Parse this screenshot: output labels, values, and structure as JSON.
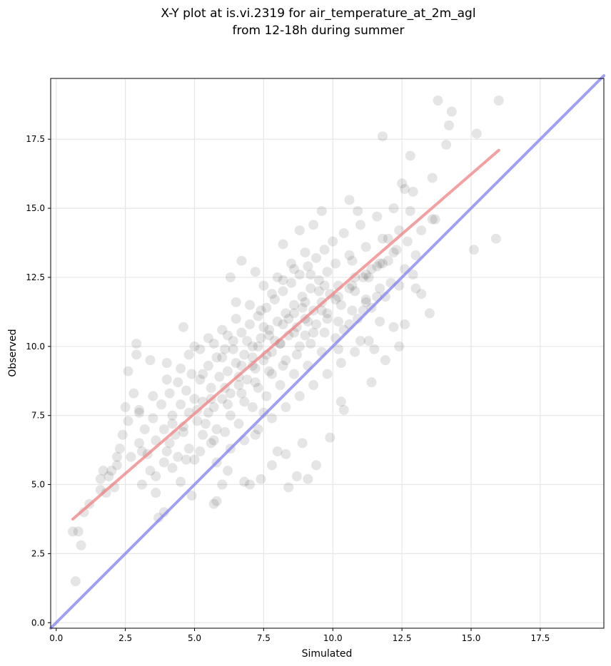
{
  "chart_data": {
    "type": "scatter",
    "title_lines": [
      "X-Y plot at is.vi.2319 for air_temperature_at_2m_agl",
      "from 12-18h during summer"
    ],
    "xlabel": "Simulated",
    "ylabel": "Observed",
    "xlim": [
      -0.2,
      19.8
    ],
    "ylim": [
      -0.2,
      19.7
    ],
    "xticks": [
      0.0,
      2.5,
      5.0,
      7.5,
      10.0,
      12.5,
      15.0,
      17.5
    ],
    "yticks": [
      0.0,
      2.5,
      5.0,
      7.5,
      10.0,
      12.5,
      15.0,
      17.5
    ],
    "xtick_labels": [
      "0.0",
      "2.5",
      "5.0",
      "7.5",
      "10.0",
      "12.5",
      "15.0",
      "17.5"
    ],
    "ytick_labels": [
      "0.0",
      "2.5",
      "5.0",
      "7.5",
      "10.0",
      "12.5",
      "15.0",
      "17.5"
    ],
    "grid": true,
    "point_color": "#000000",
    "points": [
      [
        0.7,
        1.5
      ],
      [
        0.6,
        3.3
      ],
      [
        0.8,
        3.3
      ],
      [
        0.9,
        2.8
      ],
      [
        1.0,
        4.0
      ],
      [
        1.6,
        4.8
      ],
      [
        1.6,
        5.2
      ],
      [
        1.8,
        4.7
      ],
      [
        2.0,
        5.5
      ],
      [
        2.1,
        4.9
      ],
      [
        2.2,
        5.7
      ],
      [
        2.3,
        6.3
      ],
      [
        2.5,
        7.8
      ],
      [
        2.6,
        9.1
      ],
      [
        2.8,
        8.3
      ],
      [
        2.9,
        10.1
      ],
      [
        2.9,
        9.7
      ],
      [
        3.0,
        7.7
      ],
      [
        3.1,
        6.2
      ],
      [
        3.4,
        9.5
      ],
      [
        3.6,
        4.7
      ],
      [
        3.7,
        3.8
      ],
      [
        3.9,
        4.0
      ],
      [
        4.0,
        9.4
      ],
      [
        4.2,
        7.2
      ],
      [
        4.5,
        5.1
      ],
      [
        4.6,
        10.7
      ],
      [
        4.8,
        9.7
      ],
      [
        4.9,
        4.6
      ],
      [
        5.0,
        5.9
      ],
      [
        5.3,
        9.0
      ],
      [
        5.5,
        7.6
      ],
      [
        5.7,
        4.3
      ],
      [
        5.8,
        4.4
      ],
      [
        6.0,
        5.0
      ],
      [
        6.2,
        5.5
      ],
      [
        6.3,
        12.5
      ],
      [
        6.5,
        11.6
      ],
      [
        6.7,
        13.1
      ],
      [
        6.8,
        5.1
      ],
      [
        7.0,
        5.0
      ],
      [
        7.2,
        6.8
      ],
      [
        7.4,
        5.2
      ],
      [
        7.5,
        7.6
      ],
      [
        7.8,
        5.7
      ],
      [
        8.0,
        6.2
      ],
      [
        8.2,
        13.7
      ],
      [
        8.3,
        6.1
      ],
      [
        8.4,
        4.9
      ],
      [
        8.7,
        5.3
      ],
      [
        8.9,
        6.5
      ],
      [
        9.1,
        5.2
      ],
      [
        9.4,
        5.7
      ],
      [
        9.6,
        14.9
      ],
      [
        9.9,
        6.7
      ],
      [
        10.2,
        9.9
      ],
      [
        10.3,
        8.0
      ],
      [
        10.4,
        7.7
      ],
      [
        10.6,
        15.3
      ],
      [
        10.7,
        13.1
      ],
      [
        10.9,
        14.9
      ],
      [
        11.0,
        10.2
      ],
      [
        11.2,
        11.6
      ],
      [
        11.4,
        8.7
      ],
      [
        11.5,
        9.9
      ],
      [
        11.7,
        10.9
      ],
      [
        11.8,
        17.6
      ],
      [
        11.9,
        9.5
      ],
      [
        12.0,
        13.9
      ],
      [
        12.2,
        10.7
      ],
      [
        12.4,
        10.0
      ],
      [
        12.5,
        15.9
      ],
      [
        12.6,
        10.8
      ],
      [
        12.8,
        16.9
      ],
      [
        12.9,
        15.6
      ],
      [
        13.0,
        12.1
      ],
      [
        13.2,
        11.9
      ],
      [
        13.5,
        11.2
      ],
      [
        13.6,
        16.1
      ],
      [
        13.7,
        14.6
      ],
      [
        13.8,
        18.9
      ],
      [
        14.1,
        17.3
      ],
      [
        14.2,
        18.0
      ],
      [
        14.3,
        18.5
      ],
      [
        15.1,
        13.5
      ],
      [
        15.2,
        17.7
      ],
      [
        15.9,
        13.9
      ],
      [
        16.0,
        18.9
      ],
      [
        1.2,
        4.3
      ],
      [
        1.9,
        5.3
      ],
      [
        2.4,
        6.8
      ],
      [
        2.7,
        6.0
      ],
      [
        3.0,
        6.5
      ],
      [
        3.2,
        7.0
      ],
      [
        3.3,
        6.1
      ],
      [
        3.5,
        7.4
      ],
      [
        3.6,
        6.6
      ],
      [
        3.8,
        7.9
      ],
      [
        3.9,
        7.0
      ],
      [
        4.0,
        6.2
      ],
      [
        4.1,
        8.3
      ],
      [
        4.2,
        7.5
      ],
      [
        4.3,
        6.8
      ],
      [
        4.4,
        8.7
      ],
      [
        4.5,
        7.9
      ],
      [
        4.6,
        7.1
      ],
      [
        4.7,
        8.4
      ],
      [
        4.8,
        7.6
      ],
      [
        4.9,
        9.0
      ],
      [
        5.0,
        8.1
      ],
      [
        5.1,
        7.3
      ],
      [
        5.2,
        8.8
      ],
      [
        5.3,
        8.0
      ],
      [
        5.4,
        7.2
      ],
      [
        5.5,
        9.3
      ],
      [
        5.6,
        8.5
      ],
      [
        5.7,
        7.8
      ],
      [
        5.8,
        9.6
      ],
      [
        5.9,
        8.9
      ],
      [
        6.0,
        8.1
      ],
      [
        6.1,
        9.9
      ],
      [
        6.2,
        9.1
      ],
      [
        6.3,
        8.3
      ],
      [
        6.4,
        10.2
      ],
      [
        6.5,
        9.4
      ],
      [
        6.6,
        8.6
      ],
      [
        6.7,
        10.5
      ],
      [
        6.8,
        9.7
      ],
      [
        6.9,
        8.8
      ],
      [
        7.0,
        10.8
      ],
      [
        7.1,
        10.0
      ],
      [
        7.2,
        9.2
      ],
      [
        7.3,
        11.1
      ],
      [
        7.4,
        10.3
      ],
      [
        7.5,
        9.5
      ],
      [
        7.6,
        11.4
      ],
      [
        7.7,
        10.6
      ],
      [
        7.8,
        9.8
      ],
      [
        7.9,
        11.7
      ],
      [
        8.0,
        10.9
      ],
      [
        8.1,
        10.1
      ],
      [
        8.2,
        12.0
      ],
      [
        8.3,
        11.2
      ],
      [
        8.4,
        10.4
      ],
      [
        8.5,
        12.3
      ],
      [
        8.6,
        11.5
      ],
      [
        8.7,
        10.7
      ],
      [
        8.8,
        12.6
      ],
      [
        8.9,
        11.8
      ],
      [
        9.0,
        11.0
      ],
      [
        9.1,
        12.9
      ],
      [
        9.2,
        12.1
      ],
      [
        9.3,
        11.3
      ],
      [
        9.4,
        13.2
      ],
      [
        9.5,
        12.4
      ],
      [
        9.6,
        11.6
      ],
      [
        9.7,
        13.5
      ],
      [
        9.8,
        12.7
      ],
      [
        9.9,
        11.9
      ],
      [
        10.0,
        13.8
      ],
      [
        10.1,
        13.0
      ],
      [
        10.2,
        12.2
      ],
      [
        10.4,
        14.1
      ],
      [
        10.6,
        13.3
      ],
      [
        10.8,
        12.5
      ],
      [
        11.0,
        14.4
      ],
      [
        11.2,
        13.6
      ],
      [
        11.4,
        12.8
      ],
      [
        11.6,
        14.7
      ],
      [
        11.8,
        13.9
      ],
      [
        12.0,
        13.1
      ],
      [
        12.2,
        15.0
      ],
      [
        12.4,
        14.2
      ],
      [
        12.6,
        15.7
      ],
      [
        12.8,
        14.9
      ],
      [
        13.0,
        13.3
      ],
      [
        6.0,
        10.6
      ],
      [
        6.5,
        11.0
      ],
      [
        7.0,
        11.5
      ],
      [
        7.5,
        12.2
      ],
      [
        8.0,
        12.5
      ],
      [
        8.5,
        13.0
      ],
      [
        9.0,
        13.4
      ],
      [
        9.3,
        14.4
      ],
      [
        8.8,
        14.2
      ],
      [
        7.2,
        12.7
      ],
      [
        5.5,
        10.3
      ],
      [
        5.0,
        10.0
      ],
      [
        4.5,
        9.2
      ],
      [
        4.0,
        8.8
      ],
      [
        3.5,
        8.2
      ],
      [
        3.0,
        7.6
      ],
      [
        2.6,
        7.3
      ],
      [
        2.2,
        6.0
      ],
      [
        1.7,
        5.5
      ],
      [
        5.6,
        6.5
      ],
      [
        6.1,
        6.9
      ],
      [
        6.6,
        7.2
      ],
      [
        7.1,
        7.8
      ],
      [
        7.6,
        8.2
      ],
      [
        8.1,
        8.6
      ],
      [
        8.6,
        9.0
      ],
      [
        9.1,
        9.3
      ],
      [
        9.6,
        9.8
      ],
      [
        10.1,
        10.3
      ],
      [
        10.6,
        10.8
      ],
      [
        11.1,
        11.3
      ],
      [
        11.6,
        11.8
      ],
      [
        12.1,
        12.3
      ],
      [
        12.6,
        12.8
      ],
      [
        5.8,
        7.0
      ],
      [
        6.3,
        7.5
      ],
      [
        6.8,
        8.0
      ],
      [
        7.3,
        8.5
      ],
      [
        7.8,
        9.0
      ],
      [
        8.3,
        9.5
      ],
      [
        8.8,
        10.0
      ],
      [
        9.3,
        10.5
      ],
      [
        9.8,
        11.0
      ],
      [
        10.3,
        11.5
      ],
      [
        10.8,
        12.0
      ],
      [
        11.3,
        12.5
      ],
      [
        11.8,
        13.0
      ],
      [
        12.3,
        13.5
      ],
      [
        4.8,
        6.3
      ],
      [
        5.3,
        6.8
      ],
      [
        5.8,
        5.8
      ],
      [
        6.3,
        6.3
      ],
      [
        6.8,
        6.6
      ],
      [
        7.3,
        7.0
      ],
      [
        7.8,
        7.4
      ],
      [
        8.3,
        7.8
      ],
      [
        8.8,
        8.2
      ],
      [
        9.3,
        8.6
      ],
      [
        9.8,
        9.0
      ],
      [
        10.3,
        9.4
      ],
      [
        10.8,
        9.8
      ],
      [
        11.3,
        10.2
      ],
      [
        3.4,
        5.5
      ],
      [
        3.9,
        5.8
      ],
      [
        4.4,
        6.0
      ],
      [
        6.0,
        9.6
      ],
      [
        6.4,
        9.9
      ],
      [
        6.9,
        10.2
      ],
      [
        7.3,
        10.0
      ],
      [
        7.7,
        10.4
      ],
      [
        8.2,
        10.8
      ],
      [
        8.6,
        11.2
      ],
      [
        9.0,
        11.6
      ],
      [
        9.5,
        12.0
      ],
      [
        6.7,
        9.3
      ],
      [
        7.1,
        9.6
      ],
      [
        7.5,
        10.7
      ],
      [
        7.9,
        10.2
      ],
      [
        8.4,
        11.0
      ],
      [
        8.9,
        11.4
      ],
      [
        9.2,
        12.6
      ],
      [
        9.7,
        12.2
      ],
      [
        10.2,
        11.8
      ],
      [
        10.7,
        12.2
      ],
      [
        11.2,
        12.6
      ],
      [
        11.7,
        13.0
      ],
      [
        12.2,
        13.4
      ],
      [
        12.7,
        13.8
      ],
      [
        13.2,
        14.2
      ],
      [
        13.6,
        14.6
      ],
      [
        5.2,
        9.9
      ],
      [
        5.7,
        10.1
      ],
      [
        6.2,
        10.4
      ],
      [
        7.4,
        11.3
      ],
      [
        7.8,
        11.9
      ],
      [
        8.2,
        12.4
      ],
      [
        8.6,
        12.8
      ],
      [
        9.0,
        10.4
      ],
      [
        9.4,
        10.8
      ],
      [
        9.8,
        11.2
      ],
      [
        10.4,
        10.6
      ],
      [
        10.9,
        11.0
      ],
      [
        11.4,
        11.4
      ],
      [
        11.9,
        11.8
      ],
      [
        12.4,
        12.2
      ],
      [
        12.9,
        12.6
      ],
      [
        4.2,
        5.6
      ],
      [
        4.7,
        5.9
      ],
      [
        5.2,
        6.2
      ],
      [
        5.7,
        6.6
      ],
      [
        6.2,
        7.9
      ],
      [
        6.7,
        8.3
      ],
      [
        7.2,
        8.7
      ],
      [
        7.7,
        9.1
      ],
      [
        8.2,
        9.3
      ],
      [
        8.7,
        9.7
      ],
      [
        9.2,
        10.1
      ],
      [
        9.7,
        10.5
      ],
      [
        10.2,
        10.9
      ],
      [
        10.7,
        11.3
      ],
      [
        11.2,
        11.7
      ],
      [
        11.7,
        12.1
      ],
      [
        3.1,
        5.0
      ],
      [
        3.6,
        5.3
      ],
      [
        4.1,
        6.5
      ],
      [
        4.6,
        6.9
      ],
      [
        5.1,
        7.7
      ],
      [
        5.6,
        8.1
      ],
      [
        6.1,
        8.5
      ],
      [
        6.6,
        8.9
      ],
      [
        7.1,
        9.3
      ],
      [
        7.6,
        9.7
      ],
      [
        8.1,
        10.1
      ],
      [
        8.6,
        10.5
      ],
      [
        9.1,
        10.9
      ],
      [
        9.6,
        11.3
      ],
      [
        10.1,
        11.7
      ],
      [
        10.6,
        12.1
      ],
      [
        11.1,
        12.5
      ],
      [
        11.6,
        12.9
      ]
    ],
    "fit_line": {
      "x": [
        0.6,
        16.0
      ],
      "y": [
        3.75,
        17.1
      ],
      "color": "#f08080"
    },
    "identity_line": {
      "x": [
        -0.2,
        19.8
      ],
      "y": [
        -0.2,
        19.8
      ],
      "color": "#8080f0"
    }
  }
}
